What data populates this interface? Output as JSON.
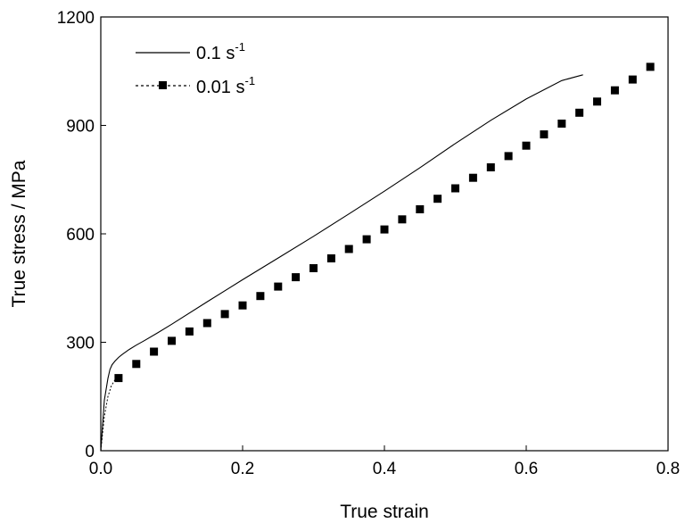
{
  "chart_data": {
    "type": "line",
    "xlabel": "True strain",
    "ylabel": "True stress / MPa",
    "xlim": [
      0.0,
      0.8
    ],
    "ylim": [
      0,
      1200
    ],
    "xticks": [
      "0.0",
      "0.2",
      "0.4",
      "0.6",
      "0.8"
    ],
    "yticks": [
      "0",
      "300",
      "600",
      "900",
      "1200"
    ],
    "xtick_values": [
      0.0,
      0.2,
      0.4,
      0.6,
      0.8
    ],
    "ytick_values": [
      0,
      300,
      600,
      900,
      1200
    ],
    "grid": false,
    "legend_placement": "top-left",
    "series": [
      {
        "name": "0.1 s",
        "name_superscript": "-1",
        "style": "solid line",
        "x": [
          0.0,
          0.005,
          0.01,
          0.013,
          0.016,
          0.02,
          0.025,
          0.03,
          0.04,
          0.05,
          0.06,
          0.08,
          0.1,
          0.15,
          0.2,
          0.25,
          0.3,
          0.35,
          0.4,
          0.45,
          0.5,
          0.55,
          0.6,
          0.65,
          0.68
        ],
        "y": [
          0,
          140,
          200,
          225,
          238,
          248,
          258,
          266,
          280,
          292,
          303,
          326,
          350,
          412,
          473,
          533,
          593,
          655,
          718,
          783,
          850,
          914,
          973,
          1024,
          1040
        ]
      },
      {
        "name": "0.01 s",
        "name_superscript": "-1",
        "style": "dashed line with square markers",
        "line_x": [
          0.0,
          0.005,
          0.01,
          0.015,
          0.02,
          0.025
        ],
        "line_y": [
          0,
          95,
          150,
          180,
          196,
          205
        ],
        "x": [
          0.025,
          0.05,
          0.075,
          0.1,
          0.125,
          0.15,
          0.175,
          0.2,
          0.225,
          0.25,
          0.275,
          0.3,
          0.325,
          0.35,
          0.375,
          0.4,
          0.425,
          0.45,
          0.475,
          0.5,
          0.525,
          0.55,
          0.575,
          0.6,
          0.625,
          0.65,
          0.675,
          0.7,
          0.725,
          0.75,
          0.775
        ],
        "y": [
          201,
          240,
          274,
          304,
          330,
          353,
          378,
          402,
          428,
          454,
          480,
          505,
          532,
          558,
          585,
          612,
          640,
          668,
          697,
          726,
          755,
          784,
          815,
          844,
          875,
          905,
          935,
          966,
          997,
          1027,
          1062
        ]
      }
    ]
  }
}
